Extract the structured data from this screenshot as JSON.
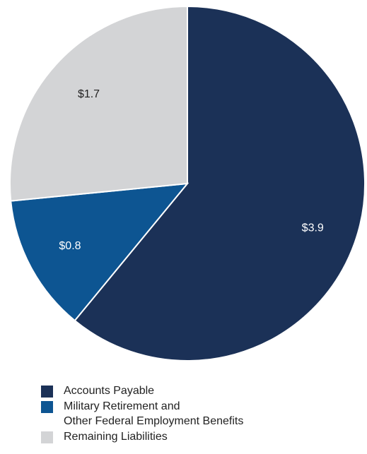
{
  "chart_data": {
    "type": "pie",
    "categories": [
      "Accounts Payable",
      "Military Retirement and\nOther Federal Employment Benefits",
      "Remaining Liabilities"
    ],
    "values": [
      3.9,
      0.8,
      1.7
    ],
    "value_labels": [
      "$3.9",
      "$0.8",
      "$1.7"
    ],
    "colors": [
      "#1b3157",
      "#0d5592",
      "#d3d4d6"
    ],
    "legend": "bottom"
  }
}
